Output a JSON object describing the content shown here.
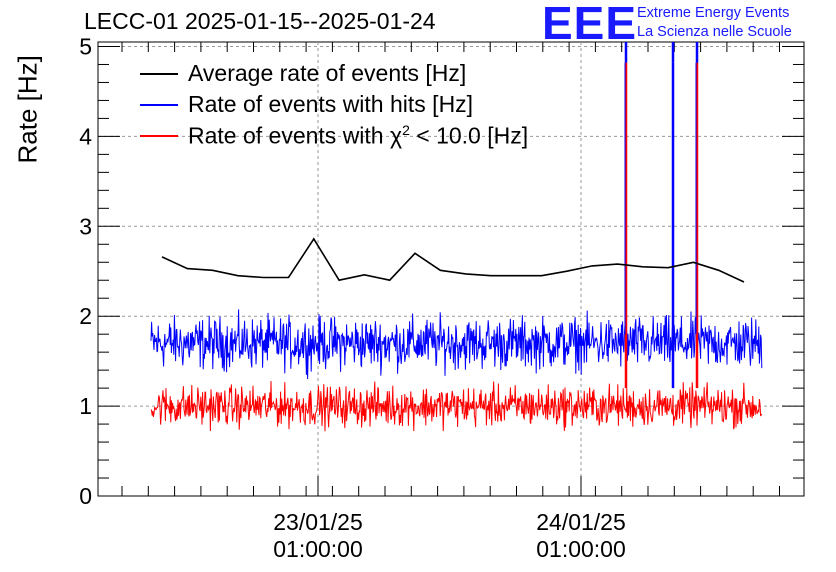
{
  "title": "LECC-01 2025-01-15--2025-01-24",
  "logo": {
    "mark": "EEE",
    "line1": "Extreme Energy Events",
    "line2": "La Scienza nelle Scuole"
  },
  "colors": {
    "average": "#000000",
    "hits": "#0000ff",
    "chi2": "#ff0000",
    "logo": "#1a1aff"
  },
  "chart_data": {
    "type": "line",
    "ylabel": "Rate [Hz]",
    "ylim": [
      0,
      5.05
    ],
    "yticks": [
      "0",
      "1",
      "2",
      "3",
      "4",
      "5"
    ],
    "xticks": [
      {
        "line1": "23/01/25",
        "line2": "01:00:00"
      },
      {
        "line1": "24/01/25",
        "line2": "01:00:00"
      }
    ],
    "grid": true,
    "legend": "top-left",
    "series": [
      {
        "name": "Average rate of events [Hz]",
        "points_note": "",
        "values": [
          2.66,
          2.53,
          2.51,
          2.45,
          2.43,
          2.43,
          2.86,
          2.4,
          2.46,
          2.4,
          2.7,
          2.51,
          2.47,
          2.45,
          2.45,
          2.45,
          2.5,
          2.56,
          2.58,
          2.55,
          2.54,
          2.6,
          2.51,
          2.38
        ]
      },
      {
        "name": "Rate of events with hits [Hz]",
        "mean": 1.7,
        "spread": 0.28,
        "spikes_top": 5.05
      },
      {
        "name": "Rate of events with χ² < 10.0 [Hz]",
        "mean": 1.0,
        "spread": 0.22,
        "spikes_top": 5.05
      }
    ],
    "legend_labels": {
      "average": "Average rate of events [Hz]",
      "hits": "Rate of events with hits [Hz]",
      "chi2_prefix": "Rate of events with χ",
      "chi2_sup": "2",
      "chi2_suffix": " < 10.0 [Hz]"
    }
  }
}
